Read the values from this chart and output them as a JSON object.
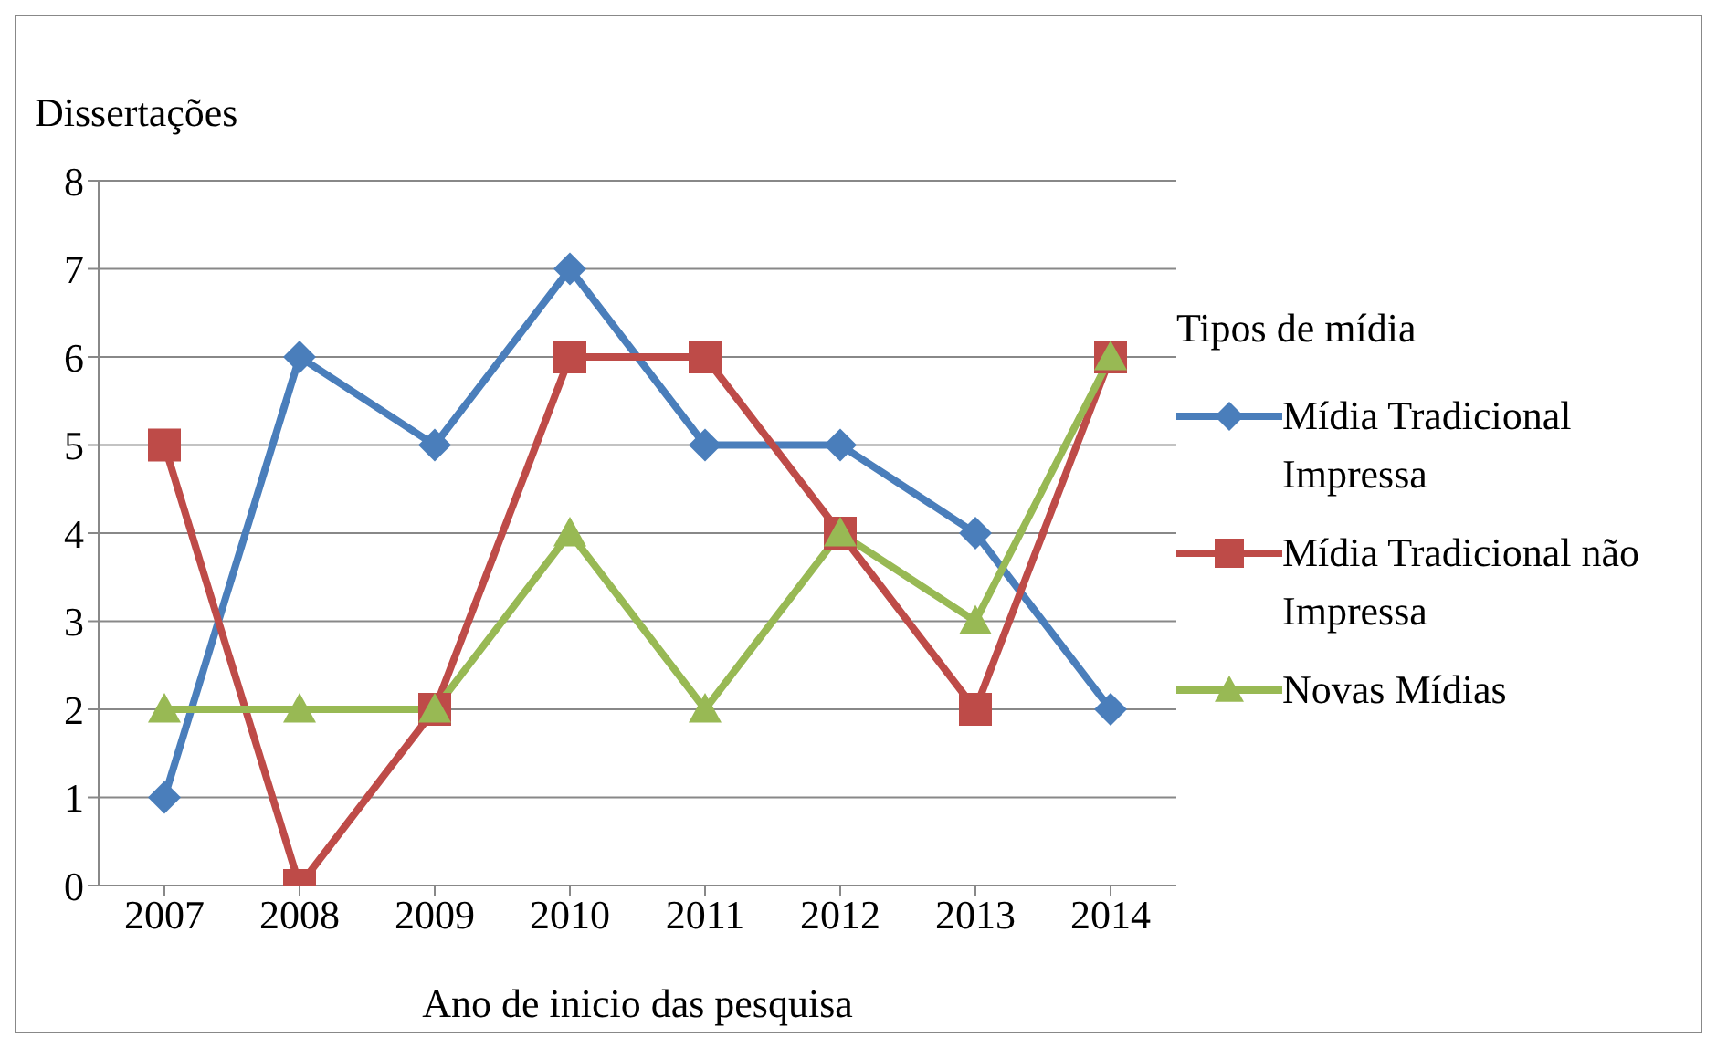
{
  "chart_data": {
    "type": "line",
    "ylabel": "Dissertações",
    "xlabel": "Ano de inicio das pesquisa",
    "legend_title": "Tipos de mídia",
    "categories": [
      "2007",
      "2008",
      "2009",
      "2010",
      "2011",
      "2012",
      "2013",
      "2014"
    ],
    "series": [
      {
        "name": "Mídia Tradicional Impressa",
        "color": "#4a7ebb",
        "marker": "diamond",
        "values": [
          1,
          6,
          5,
          7,
          5,
          5,
          4,
          2
        ]
      },
      {
        "name": "Mídia Tradicional não Impressa",
        "color": "#be4b48",
        "marker": "square",
        "values": [
          5,
          0,
          2,
          6,
          6,
          4,
          2,
          6
        ]
      },
      {
        "name": "Novas Mídias",
        "color": "#98b954",
        "marker": "triangle",
        "values": [
          2,
          2,
          2,
          4,
          2,
          4,
          3,
          6
        ]
      }
    ],
    "ylim": [
      0,
      8
    ],
    "yticks": [
      0,
      1,
      2,
      3,
      4,
      5,
      6,
      7,
      8
    ],
    "grid": "y",
    "legend": "right",
    "line_style": "solid"
  }
}
